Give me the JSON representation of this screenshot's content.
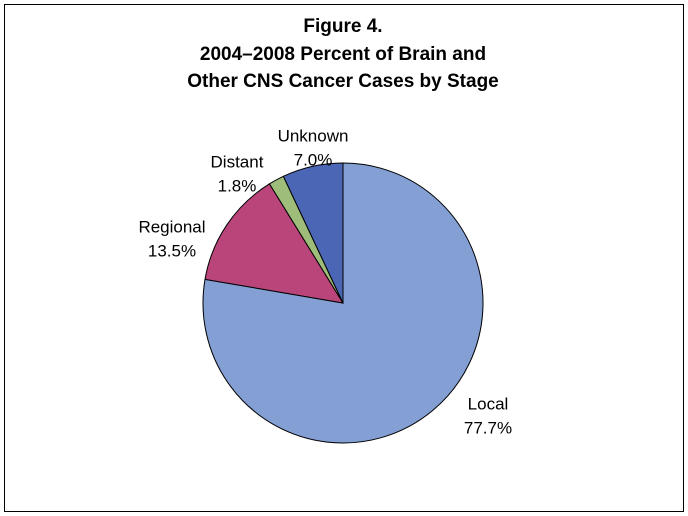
{
  "chart_data": {
    "type": "pie",
    "title": [
      "Figure 4.",
      "2004–2008 Percent of Brain and",
      "Other CNS Cancer Cases by Stage"
    ],
    "categories": [
      "Local",
      "Regional",
      "Distant",
      "Unknown"
    ],
    "values": [
      77.7,
      13.5,
      1.8,
      7.0
    ],
    "value_labels": [
      "77.7%",
      "13.5%",
      "1.8%",
      "7.0%"
    ],
    "colors": [
      "#849fd4",
      "#b9457a",
      "#9fbd7a",
      "#4a66b4"
    ]
  }
}
